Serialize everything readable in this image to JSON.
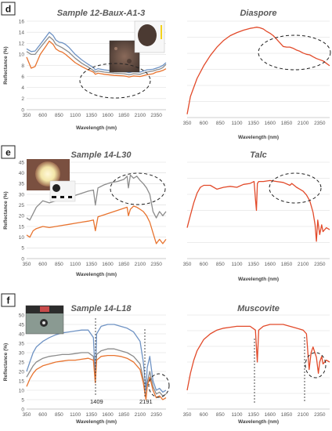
{
  "panel_labels": [
    "d",
    "e",
    "f"
  ],
  "colors": {
    "orange": "#e8732e",
    "gray": "#8c8c8c",
    "blue": "#6f93c4",
    "red": "#e24a2a"
  },
  "chart_data": [
    {
      "type": "line",
      "panel": "d",
      "title": "Sample 12-Baux-A1-3",
      "xlabel": "Wavelength (nm)",
      "ylabel": "Reflectance (%)",
      "xlim": [
        350,
        2500
      ],
      "ylim": [
        0,
        16
      ],
      "xticks": [
        350,
        600,
        850,
        1100,
        1350,
        1600,
        1850,
        2100,
        2350
      ],
      "yticks": [
        0,
        2,
        4,
        6,
        8,
        10,
        12,
        14,
        16
      ],
      "grid": true,
      "series": [
        {
          "color": "blue",
          "x": [
            350,
            420,
            480,
            560,
            650,
            700,
            760,
            800,
            850,
            900,
            950,
            1000,
            1100,
            1200,
            1300,
            1380,
            1410,
            1450,
            1550,
            1700,
            1850,
            1900,
            1930,
            2000,
            2100,
            2200,
            2300,
            2350,
            2400,
            2450,
            2500
          ],
          "y": [
            11,
            10.5,
            10.6,
            11.8,
            13.2,
            14,
            13.4,
            12.6,
            12.2,
            12.1,
            11.8,
            11.3,
            10,
            9,
            8.2,
            7.6,
            7.2,
            7.4,
            7.2,
            7,
            6.9,
            6.8,
            6.7,
            6.9,
            6.8,
            7.2,
            7.3,
            7.5,
            7.7,
            8,
            8.5
          ]
        },
        {
          "color": "gray",
          "x": [
            350,
            420,
            480,
            560,
            650,
            700,
            760,
            800,
            850,
            900,
            950,
            1000,
            1100,
            1200,
            1300,
            1380,
            1410,
            1450,
            1550,
            1700,
            1850,
            1900,
            1930,
            2000,
            2100,
            2200,
            2300,
            2350,
            2400,
            2450,
            2500
          ],
          "y": [
            10.5,
            10,
            10,
            11.2,
            12.5,
            13.2,
            12.6,
            11.8,
            11.5,
            11.2,
            10.8,
            10.4,
            9.3,
            8.4,
            7.7,
            7.1,
            6.8,
            7,
            6.8,
            6.6,
            6.5,
            6.4,
            6.3,
            6.5,
            6.4,
            6.8,
            7,
            7.2,
            7.3,
            7.6,
            8.2
          ]
        },
        {
          "color": "orange",
          "x": [
            350,
            420,
            480,
            560,
            650,
            700,
            760,
            800,
            850,
            900,
            950,
            1000,
            1100,
            1200,
            1300,
            1380,
            1410,
            1450,
            1550,
            1700,
            1850,
            1900,
            1930,
            2000,
            2100,
            2200,
            2300,
            2350,
            2400,
            2450,
            2500
          ],
          "y": [
            9.5,
            7.5,
            7.8,
            10,
            11.5,
            12.4,
            11.8,
            11,
            10.6,
            10.4,
            10,
            9.5,
            8.5,
            7.8,
            7.2,
            6.8,
            6.4,
            6.6,
            6.4,
            6.2,
            6.1,
            6,
            5.9,
            6.1,
            6,
            6.3,
            6.5,
            6.8,
            6.9,
            7.1,
            7.4
          ]
        }
      ]
    },
    {
      "type": "line",
      "panel": "d",
      "title": "Diaspore",
      "xlabel": "Wavelength (nm)",
      "xlim": [
        350,
        2500
      ],
      "xticks": [
        350,
        600,
        850,
        1100,
        1350,
        1600,
        1850,
        2100,
        2350
      ],
      "grid": true,
      "series": [
        {
          "color": "red",
          "x": [
            350,
            400,
            500,
            600,
            700,
            800,
            900,
            1000,
            1100,
            1200,
            1300,
            1350,
            1400,
            1450,
            1500,
            1550,
            1600,
            1650,
            1700,
            1750,
            1800,
            1850,
            1900,
            1950,
            2000,
            2050,
            2100,
            2150,
            2200,
            2250,
            2300,
            2350,
            2400,
            2450,
            2500
          ],
          "y": [
            0.55,
            3.5,
            6.5,
            8.6,
            10.3,
            11.7,
            12.8,
            13.6,
            14.1,
            14.5,
            14.8,
            14.9,
            15,
            14.9,
            14.7,
            14.3,
            14,
            13.6,
            13,
            12.4,
            11.8,
            11.7,
            11.7,
            11.5,
            11.2,
            11,
            10.7,
            10.5,
            10.4,
            10.1,
            9.8,
            9.6,
            9.4,
            9,
            8.6
          ]
        }
      ]
    },
    {
      "type": "line",
      "panel": "e",
      "title": "Sample 14-L30",
      "xlabel": "Wavelength (nm)",
      "ylabel": "Reflectance (%)",
      "xlim": [
        350,
        2500
      ],
      "ylim": [
        0,
        45
      ],
      "xticks": [
        350,
        600,
        850,
        1100,
        1350,
        1600,
        1850,
        2100,
        2350
      ],
      "yticks": [
        0,
        5,
        10,
        15,
        20,
        25,
        30,
        35,
        40,
        45
      ],
      "grid": true,
      "series": [
        {
          "color": "gray",
          "x": [
            350,
            400,
            450,
            500,
            600,
            700,
            800,
            900,
            1000,
            1100,
            1200,
            1300,
            1380,
            1410,
            1450,
            1550,
            1650,
            1750,
            1850,
            1900,
            1920,
            1950,
            2000,
            2050,
            2100,
            2150,
            2200,
            2250,
            2300,
            2350,
            2400,
            2450,
            2500
          ],
          "y": [
            19,
            18,
            21,
            24,
            27,
            26,
            27,
            27.5,
            28.5,
            29.5,
            30.5,
            31.5,
            32,
            25,
            33,
            34.5,
            35.5,
            36,
            37,
            38.5,
            33,
            39,
            37.5,
            38.5,
            36.5,
            35,
            33,
            30,
            22,
            19,
            22,
            20,
            22
          ]
        },
        {
          "color": "orange",
          "x": [
            350,
            400,
            450,
            500,
            600,
            700,
            800,
            900,
            1000,
            1100,
            1200,
            1300,
            1380,
            1410,
            1450,
            1550,
            1650,
            1750,
            1850,
            1900,
            1920,
            1950,
            2000,
            2050,
            2100,
            2150,
            2200,
            2250,
            2300,
            2350,
            2400,
            2450,
            2500
          ],
          "y": [
            11,
            10,
            13,
            14,
            15,
            14.5,
            15,
            15.5,
            16,
            16.5,
            17,
            17.5,
            18,
            13,
            19.5,
            20.5,
            21.5,
            22.5,
            23.5,
            24,
            20,
            23,
            24.5,
            24,
            23,
            22,
            20,
            17,
            12,
            7,
            9,
            7,
            9
          ]
        }
      ]
    },
    {
      "type": "line",
      "panel": "e",
      "title": "Talc",
      "xlabel": "Wavelength (nm)",
      "xlim": [
        350,
        2500
      ],
      "xticks": [
        350,
        600,
        850,
        1100,
        1350,
        1600,
        1850,
        2100,
        2350
      ],
      "grid": true,
      "series": [
        {
          "color": "red",
          "x": [
            350,
            400,
            450,
            500,
            550,
            600,
            700,
            800,
            900,
            1000,
            1100,
            1200,
            1300,
            1360,
            1380,
            1395,
            1410,
            1430,
            1500,
            1600,
            1700,
            1800,
            1900,
            1930,
            2000,
            2050,
            2100,
            2150,
            2200,
            2250,
            2280,
            2300,
            2320,
            2350,
            2380,
            2400,
            2450,
            2500
          ],
          "y": [
            0.32,
            0.45,
            0.58,
            0.68,
            0.74,
            0.76,
            0.76,
            0.72,
            0.74,
            0.75,
            0.74,
            0.77,
            0.78,
            0.8,
            0.62,
            0.5,
            0.78,
            0.8,
            0.8,
            0.81,
            0.8,
            0.79,
            0.76,
            0.78,
            0.74,
            0.72,
            0.7,
            0.66,
            0.6,
            0.48,
            0.35,
            0.18,
            0.4,
            0.25,
            0.35,
            0.28,
            0.32,
            0.3
          ]
        }
      ]
    },
    {
      "type": "line",
      "panel": "f",
      "title": "Sample 14-L18",
      "xlabel": "Wavelength (nm)",
      "ylabel": "Reflectance (%)",
      "xlim": [
        350,
        2500
      ],
      "ylim": [
        0,
        50
      ],
      "xticks": [
        350,
        600,
        850,
        1100,
        1350,
        1600,
        1850,
        2100,
        2350
      ],
      "yticks": [
        0,
        5,
        10,
        15,
        20,
        25,
        30,
        35,
        40,
        45,
        50
      ],
      "grid": true,
      "annotations": [
        "1409",
        "2191"
      ],
      "series": [
        {
          "color": "blue",
          "x": [
            350,
            400,
            450,
            500,
            600,
            700,
            800,
            900,
            1000,
            1100,
            1200,
            1300,
            1380,
            1409,
            1430,
            1500,
            1600,
            1700,
            1800,
            1900,
            2000,
            2100,
            2150,
            2191,
            2210,
            2250,
            2300,
            2350,
            2400,
            2450,
            2500
          ],
          "y": [
            20,
            25,
            30,
            33,
            36,
            38,
            39.5,
            40.5,
            41,
            41.5,
            42,
            42,
            38,
            17,
            40,
            44,
            45,
            45,
            44,
            43,
            41,
            36,
            25,
            10,
            22,
            28,
            15,
            10,
            11,
            9,
            10
          ]
        },
        {
          "color": "gray",
          "x": [
            350,
            400,
            450,
            500,
            600,
            700,
            800,
            900,
            1000,
            1100,
            1200,
            1300,
            1380,
            1409,
            1430,
            1500,
            1600,
            1700,
            1800,
            1900,
            2000,
            2100,
            2150,
            2191,
            2210,
            2250,
            2300,
            2350,
            2400,
            2450,
            2500
          ],
          "y": [
            17,
            20,
            23,
            25,
            27,
            28,
            28.5,
            29,
            29,
            29.5,
            30,
            30,
            28,
            15,
            29,
            31,
            32,
            32,
            31,
            30,
            28,
            24,
            16,
            6,
            14,
            20,
            12,
            8,
            9,
            7,
            8
          ]
        },
        {
          "color": "orange",
          "x": [
            350,
            400,
            450,
            500,
            600,
            700,
            800,
            900,
            1000,
            1100,
            1200,
            1300,
            1380,
            1409,
            1430,
            1500,
            1600,
            1700,
            1800,
            1900,
            2000,
            2100,
            2150,
            2191,
            2210,
            2250,
            2300,
            2350,
            2400,
            2450,
            2500
          ],
          "y": [
            12,
            16,
            19,
            21,
            23,
            24,
            25,
            25.5,
            26,
            26,
            26.5,
            27,
            26,
            14,
            26,
            28,
            28.5,
            28.5,
            28,
            27,
            25,
            21,
            14,
            5,
            12,
            17,
            10,
            6,
            7,
            5,
            6
          ]
        }
      ]
    },
    {
      "type": "line",
      "panel": "f",
      "title": "Muscovite",
      "xlabel": "Wavelength (nm)",
      "xlim": [
        350,
        2500
      ],
      "xticks": [
        350,
        600,
        850,
        1100,
        1350,
        1600,
        1850,
        2100,
        2350
      ],
      "grid": true,
      "series": [
        {
          "color": "red",
          "x": [
            350,
            400,
            450,
            500,
            600,
            700,
            800,
            900,
            1000,
            1100,
            1200,
            1300,
            1380,
            1409,
            1430,
            1500,
            1600,
            1700,
            1800,
            1900,
            2000,
            2100,
            2150,
            2191,
            2220,
            2250,
            2300,
            2330,
            2350,
            2380,
            2400,
            2450,
            2500
          ],
          "y": [
            0.2,
            0.38,
            0.52,
            0.62,
            0.74,
            0.8,
            0.84,
            0.86,
            0.87,
            0.88,
            0.88,
            0.88,
            0.84,
            0.5,
            0.84,
            0.88,
            0.9,
            0.9,
            0.9,
            0.88,
            0.86,
            0.84,
            0.8,
            0.42,
            0.6,
            0.66,
            0.55,
            0.38,
            0.5,
            0.56,
            0.48,
            0.52,
            0.5
          ]
        }
      ]
    }
  ]
}
